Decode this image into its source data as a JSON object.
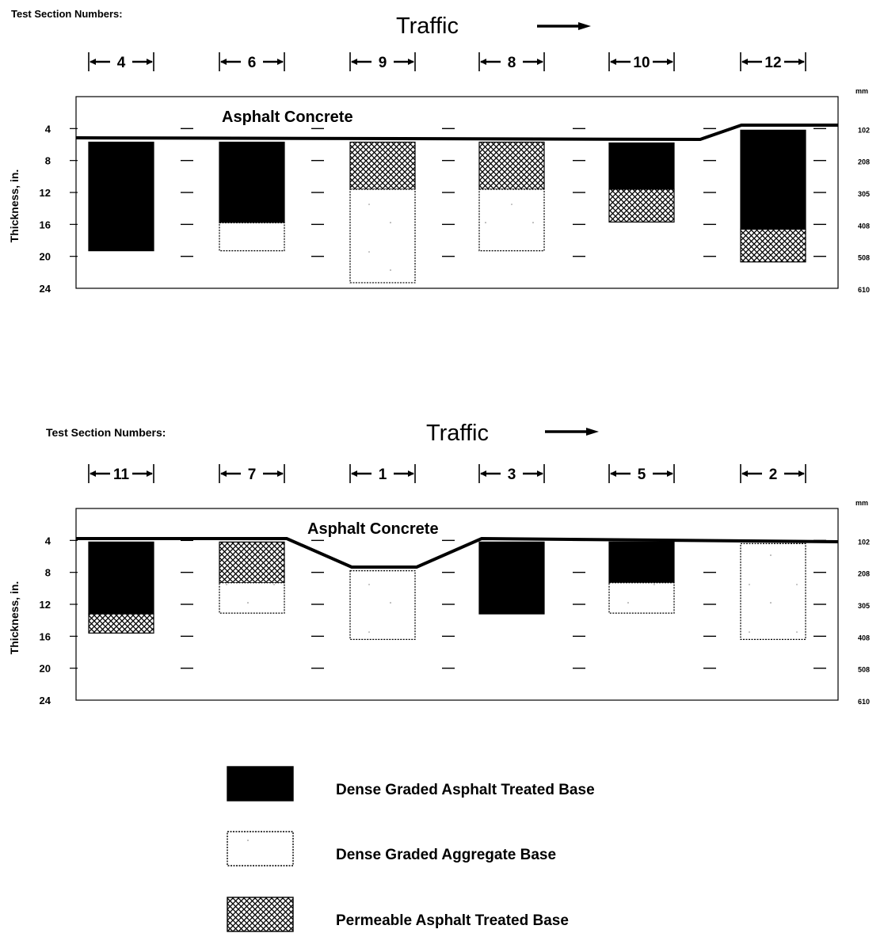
{
  "panels": [
    {
      "header": "Test Section Numbers:",
      "traffic_label": "Traffic",
      "layer_label": "Asphalt Concrete",
      "y_axis_label": "Thickness, in.",
      "y_ticks_in": [
        "4",
        "8",
        "12",
        "16",
        "20",
        "24"
      ],
      "mm_unit": "mm",
      "y_ticks_mm": [
        "102",
        "208",
        "305",
        "408",
        "508",
        "610"
      ],
      "sections": [
        {
          "number": "4",
          "layers": [
            {
              "type": "dense_atb",
              "from_in": 5.7,
              "to_in": 19.3
            }
          ]
        },
        {
          "number": "6",
          "layers": [
            {
              "type": "dense_atb",
              "from_in": 5.7,
              "to_in": 15.8
            },
            {
              "type": "aggregate",
              "from_in": 15.8,
              "to_in": 19.3
            }
          ]
        },
        {
          "number": "9",
          "layers": [
            {
              "type": "permeable_atb",
              "from_in": 5.7,
              "to_in": 11.6
            },
            {
              "type": "aggregate",
              "from_in": 11.6,
              "to_in": 23.3
            }
          ]
        },
        {
          "number": "8",
          "layers": [
            {
              "type": "permeable_atb",
              "from_in": 5.7,
              "to_in": 11.6
            },
            {
              "type": "aggregate",
              "from_in": 11.6,
              "to_in": 19.3
            }
          ]
        },
        {
          "number": "10",
          "layers": [
            {
              "type": "dense_atb",
              "from_in": 5.8,
              "to_in": 11.6
            },
            {
              "type": "permeable_atb",
              "from_in": 11.6,
              "to_in": 15.7
            }
          ]
        },
        {
          "number": "12",
          "layers": [
            {
              "type": "dense_atb",
              "from_in": 4.2,
              "to_in": 16.6
            },
            {
              "type": "permeable_atb",
              "from_in": 16.6,
              "to_in": 20.7
            }
          ]
        }
      ]
    },
    {
      "header": "Test Section Numbers:",
      "traffic_label": "Traffic",
      "layer_label": "Asphalt Concrete",
      "y_axis_label": "Thickness, in.",
      "y_ticks_in": [
        "4",
        "8",
        "12",
        "16",
        "20",
        "24"
      ],
      "mm_unit": "mm",
      "y_ticks_mm": [
        "102",
        "208",
        "305",
        "408",
        "508",
        "610"
      ],
      "sections": [
        {
          "number": "11",
          "layers": [
            {
              "type": "dense_atb",
              "from_in": 4.2,
              "to_in": 13.2
            },
            {
              "type": "permeable_atb",
              "from_in": 13.2,
              "to_in": 15.6
            }
          ]
        },
        {
          "number": "7",
          "layers": [
            {
              "type": "permeable_atb",
              "from_in": 4.2,
              "to_in": 9.3
            },
            {
              "type": "aggregate",
              "from_in": 9.3,
              "to_in": 13.1
            }
          ]
        },
        {
          "number": "1",
          "layers": [
            {
              "type": "aggregate",
              "from_in": 7.8,
              "to_in": 16.4
            }
          ]
        },
        {
          "number": "3",
          "layers": [
            {
              "type": "dense_atb",
              "from_in": 4.2,
              "to_in": 13.2
            }
          ]
        },
        {
          "number": "5",
          "layers": [
            {
              "type": "dense_atb",
              "from_in": 4.2,
              "to_in": 9.3
            },
            {
              "type": "aggregate",
              "from_in": 9.3,
              "to_in": 13.1
            }
          ]
        },
        {
          "number": "2",
          "layers": [
            {
              "type": "aggregate",
              "from_in": 4.4,
              "to_in": 16.4
            }
          ]
        }
      ]
    }
  ],
  "legend": [
    {
      "type": "dense_atb",
      "label": "Dense Graded Asphalt Treated Base"
    },
    {
      "type": "aggregate",
      "label": "Dense Graded Aggregate Base"
    },
    {
      "type": "permeable_atb",
      "label": "Permeable Asphalt Treated Base"
    }
  ]
}
